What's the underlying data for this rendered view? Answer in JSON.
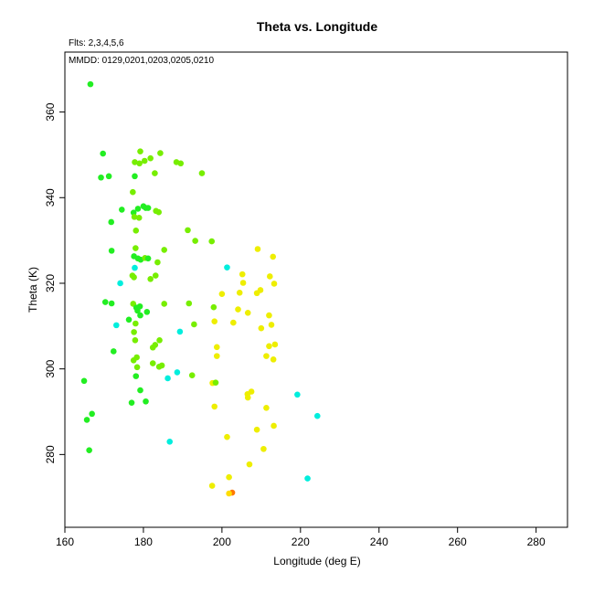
{
  "chart_data": {
    "type": "scatter",
    "title": "Theta vs. Longitude",
    "annotations": [
      "Flts: 2,3,4,5,6",
      "MMDD: 0129,0201,0203,0205,0210"
    ],
    "xlabel": "Longitude (deg E)",
    "ylabel": "Theta (K)",
    "xlim": [
      160,
      288
    ],
    "ylim": [
      263,
      374
    ],
    "xticks": [
      160,
      180,
      200,
      220,
      240,
      260,
      280
    ],
    "yticks": [
      280,
      300,
      320,
      340,
      360
    ],
    "grid": false,
    "colors": {
      "green": "#22ee22",
      "lime": "#77ee00",
      "cyan": "#00eedd",
      "yellow": "#eeee00",
      "orange": "#ff7700",
      "gold": "#ffdd00"
    },
    "points": [
      {
        "x": 166.5,
        "y": 366.5,
        "c": "green"
      },
      {
        "x": 169.7,
        "y": 350.3,
        "c": "green"
      },
      {
        "x": 169.2,
        "y": 344.7,
        "c": "green"
      },
      {
        "x": 171.2,
        "y": 345.0,
        "c": "green"
      },
      {
        "x": 177.8,
        "y": 348.3,
        "c": "lime"
      },
      {
        "x": 179.0,
        "y": 348.0,
        "c": "lime"
      },
      {
        "x": 179.2,
        "y": 350.8,
        "c": "lime"
      },
      {
        "x": 180.3,
        "y": 348.6,
        "c": "lime"
      },
      {
        "x": 181.8,
        "y": 349.2,
        "c": "lime"
      },
      {
        "x": 184.3,
        "y": 350.4,
        "c": "lime"
      },
      {
        "x": 188.4,
        "y": 348.3,
        "c": "lime"
      },
      {
        "x": 189.5,
        "y": 348.0,
        "c": "lime"
      },
      {
        "x": 194.9,
        "y": 345.7,
        "c": "lime"
      },
      {
        "x": 177.8,
        "y": 345.0,
        "c": "green"
      },
      {
        "x": 182.9,
        "y": 345.7,
        "c": "lime"
      },
      {
        "x": 177.3,
        "y": 341.3,
        "c": "lime"
      },
      {
        "x": 174.5,
        "y": 337.2,
        "c": "green"
      },
      {
        "x": 171.8,
        "y": 334.3,
        "c": "green"
      },
      {
        "x": 177.5,
        "y": 336.5,
        "c": "green"
      },
      {
        "x": 177.7,
        "y": 335.5,
        "c": "lime"
      },
      {
        "x": 178.6,
        "y": 337.4,
        "c": "green"
      },
      {
        "x": 178.9,
        "y": 335.3,
        "c": "lime"
      },
      {
        "x": 180.0,
        "y": 338.0,
        "c": "green"
      },
      {
        "x": 180.6,
        "y": 337.6,
        "c": "green"
      },
      {
        "x": 181.2,
        "y": 337.6,
        "c": "green"
      },
      {
        "x": 183.2,
        "y": 336.9,
        "c": "lime"
      },
      {
        "x": 183.9,
        "y": 336.6,
        "c": "lime"
      },
      {
        "x": 178.1,
        "y": 332.3,
        "c": "lime"
      },
      {
        "x": 191.3,
        "y": 332.4,
        "c": "lime"
      },
      {
        "x": 193.2,
        "y": 329.9,
        "c": "lime"
      },
      {
        "x": 197.4,
        "y": 329.8,
        "c": "lime"
      },
      {
        "x": 171.9,
        "y": 327.6,
        "c": "green"
      },
      {
        "x": 178.0,
        "y": 328.2,
        "c": "lime"
      },
      {
        "x": 185.3,
        "y": 327.8,
        "c": "lime"
      },
      {
        "x": 177.6,
        "y": 326.3,
        "c": "green"
      },
      {
        "x": 178.6,
        "y": 325.8,
        "c": "green"
      },
      {
        "x": 179.3,
        "y": 325.5,
        "c": "green"
      },
      {
        "x": 180.4,
        "y": 325.9,
        "c": "lime"
      },
      {
        "x": 181.2,
        "y": 325.8,
        "c": "green"
      },
      {
        "x": 183.6,
        "y": 324.9,
        "c": "lime"
      },
      {
        "x": 177.8,
        "y": 323.6,
        "c": "cyan"
      },
      {
        "x": 201.3,
        "y": 323.7,
        "c": "cyan"
      },
      {
        "x": 177.2,
        "y": 321.8,
        "c": "lime"
      },
      {
        "x": 177.6,
        "y": 321.4,
        "c": "lime"
      },
      {
        "x": 181.8,
        "y": 321.0,
        "c": "lime"
      },
      {
        "x": 183.1,
        "y": 321.8,
        "c": "lime"
      },
      {
        "x": 174.1,
        "y": 320.0,
        "c": "cyan"
      },
      {
        "x": 205.2,
        "y": 322.1,
        "c": "yellow"
      },
      {
        "x": 209.1,
        "y": 328.0,
        "c": "yellow"
      },
      {
        "x": 213.0,
        "y": 326.2,
        "c": "yellow"
      },
      {
        "x": 212.2,
        "y": 321.6,
        "c": "yellow"
      },
      {
        "x": 205.4,
        "y": 320.1,
        "c": "yellow"
      },
      {
        "x": 213.3,
        "y": 319.9,
        "c": "yellow"
      },
      {
        "x": 200.0,
        "y": 317.5,
        "c": "yellow"
      },
      {
        "x": 204.5,
        "y": 317.8,
        "c": "yellow"
      },
      {
        "x": 208.9,
        "y": 317.7,
        "c": "yellow"
      },
      {
        "x": 209.8,
        "y": 318.4,
        "c": "yellow"
      },
      {
        "x": 170.3,
        "y": 315.6,
        "c": "green"
      },
      {
        "x": 171.9,
        "y": 315.3,
        "c": "green"
      },
      {
        "x": 177.4,
        "y": 315.2,
        "c": "lime"
      },
      {
        "x": 178.2,
        "y": 314.3,
        "c": "green"
      },
      {
        "x": 178.5,
        "y": 313.6,
        "c": "green"
      },
      {
        "x": 179.1,
        "y": 314.6,
        "c": "green"
      },
      {
        "x": 180.9,
        "y": 313.3,
        "c": "green"
      },
      {
        "x": 185.3,
        "y": 315.2,
        "c": "lime"
      },
      {
        "x": 191.6,
        "y": 315.3,
        "c": "lime"
      },
      {
        "x": 197.9,
        "y": 314.4,
        "c": "lime"
      },
      {
        "x": 179.2,
        "y": 312.5,
        "c": "green"
      },
      {
        "x": 176.3,
        "y": 311.5,
        "c": "green"
      },
      {
        "x": 173.1,
        "y": 310.2,
        "c": "cyan"
      },
      {
        "x": 178.0,
        "y": 310.6,
        "c": "lime"
      },
      {
        "x": 192.9,
        "y": 310.4,
        "c": "lime"
      },
      {
        "x": 198.1,
        "y": 311.1,
        "c": "yellow"
      },
      {
        "x": 202.9,
        "y": 310.8,
        "c": "yellow"
      },
      {
        "x": 204.1,
        "y": 313.9,
        "c": "yellow"
      },
      {
        "x": 206.6,
        "y": 313.1,
        "c": "yellow"
      },
      {
        "x": 210.0,
        "y": 309.5,
        "c": "yellow"
      },
      {
        "x": 212.0,
        "y": 312.5,
        "c": "yellow"
      },
      {
        "x": 212.6,
        "y": 310.3,
        "c": "yellow"
      },
      {
        "x": 177.6,
        "y": 308.6,
        "c": "lime"
      },
      {
        "x": 189.3,
        "y": 308.7,
        "c": "cyan"
      },
      {
        "x": 177.9,
        "y": 306.7,
        "c": "lime"
      },
      {
        "x": 184.1,
        "y": 306.7,
        "c": "lime"
      },
      {
        "x": 183.0,
        "y": 305.6,
        "c": "lime"
      },
      {
        "x": 182.4,
        "y": 305.0,
        "c": "lime"
      },
      {
        "x": 198.7,
        "y": 305.1,
        "c": "yellow"
      },
      {
        "x": 212.0,
        "y": 305.3,
        "c": "yellow"
      },
      {
        "x": 213.5,
        "y": 305.7,
        "c": "yellow"
      },
      {
        "x": 172.4,
        "y": 304.1,
        "c": "green"
      },
      {
        "x": 178.3,
        "y": 302.7,
        "c": "lime"
      },
      {
        "x": 177.5,
        "y": 302.0,
        "c": "lime"
      },
      {
        "x": 182.4,
        "y": 301.3,
        "c": "lime"
      },
      {
        "x": 178.4,
        "y": 300.4,
        "c": "lime"
      },
      {
        "x": 184.0,
        "y": 300.5,
        "c": "lime"
      },
      {
        "x": 184.7,
        "y": 300.8,
        "c": "lime"
      },
      {
        "x": 198.7,
        "y": 303.0,
        "c": "yellow"
      },
      {
        "x": 211.3,
        "y": 303.0,
        "c": "yellow"
      },
      {
        "x": 213.1,
        "y": 302.2,
        "c": "yellow"
      },
      {
        "x": 164.9,
        "y": 297.2,
        "c": "green"
      },
      {
        "x": 178.1,
        "y": 298.3,
        "c": "green"
      },
      {
        "x": 186.2,
        "y": 297.8,
        "c": "cyan"
      },
      {
        "x": 188.6,
        "y": 299.2,
        "c": "cyan"
      },
      {
        "x": 192.4,
        "y": 298.5,
        "c": "lime"
      },
      {
        "x": 197.6,
        "y": 296.7,
        "c": "yellow"
      },
      {
        "x": 198.4,
        "y": 296.8,
        "c": "lime"
      },
      {
        "x": 179.2,
        "y": 295.0,
        "c": "green"
      },
      {
        "x": 206.5,
        "y": 294.1,
        "c": "yellow"
      },
      {
        "x": 206.6,
        "y": 293.3,
        "c": "yellow"
      },
      {
        "x": 207.5,
        "y": 294.7,
        "c": "yellow"
      },
      {
        "x": 219.2,
        "y": 294.0,
        "c": "cyan"
      },
      {
        "x": 177.0,
        "y": 292.1,
        "c": "green"
      },
      {
        "x": 180.6,
        "y": 292.4,
        "c": "green"
      },
      {
        "x": 198.1,
        "y": 291.2,
        "c": "yellow"
      },
      {
        "x": 211.3,
        "y": 290.9,
        "c": "yellow"
      },
      {
        "x": 166.9,
        "y": 289.5,
        "c": "green"
      },
      {
        "x": 165.6,
        "y": 288.1,
        "c": "green"
      },
      {
        "x": 224.3,
        "y": 289.0,
        "c": "cyan"
      },
      {
        "x": 213.2,
        "y": 286.7,
        "c": "yellow"
      },
      {
        "x": 208.9,
        "y": 285.8,
        "c": "yellow"
      },
      {
        "x": 201.3,
        "y": 284.1,
        "c": "yellow"
      },
      {
        "x": 186.7,
        "y": 283.0,
        "c": "cyan"
      },
      {
        "x": 166.2,
        "y": 281.0,
        "c": "green"
      },
      {
        "x": 210.6,
        "y": 281.3,
        "c": "yellow"
      },
      {
        "x": 207.0,
        "y": 277.7,
        "c": "yellow"
      },
      {
        "x": 201.8,
        "y": 274.7,
        "c": "yellow"
      },
      {
        "x": 221.8,
        "y": 274.4,
        "c": "cyan"
      },
      {
        "x": 197.5,
        "y": 272.7,
        "c": "yellow"
      },
      {
        "x": 202.6,
        "y": 271.1,
        "c": "orange"
      },
      {
        "x": 201.8,
        "y": 270.9,
        "c": "gold"
      }
    ]
  }
}
